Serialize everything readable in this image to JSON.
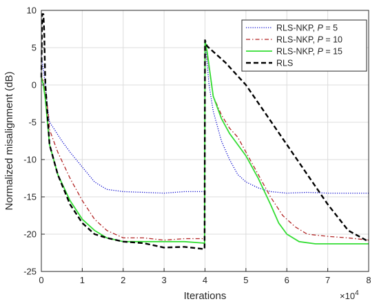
{
  "chart_data": {
    "type": "line",
    "title": "",
    "xlabel": "Iterations",
    "ylabel": "Normalized misalignment (dB)",
    "x_multiplier": "×10",
    "x_multiplier_exp": "4",
    "xlim": [
      0,
      8
    ],
    "ylim": [
      -25,
      10
    ],
    "xticks": [
      "0",
      "1",
      "2",
      "3",
      "4",
      "5",
      "6",
      "7",
      "8"
    ],
    "yticks": [
      "-25",
      "-20",
      "-15",
      "-10",
      "-5",
      "0",
      "5",
      "10"
    ],
    "grid": true,
    "legend_position": "top-right",
    "series": [
      {
        "legend_prefix": "RLS-NKP, ",
        "legend_var": "P",
        "legend_suffix": " = 5",
        "color": "#0000cc",
        "dash": "dotted",
        "x": [
          0,
          0.05,
          0.1,
          0.15,
          0.2,
          0.3,
          0.5,
          0.7,
          1.0,
          1.3,
          1.6,
          2.0,
          2.5,
          3.0,
          3.5,
          3.99,
          4.0,
          4.05,
          4.1,
          4.2,
          4.4,
          4.6,
          4.8,
          5.0,
          5.3,
          5.6,
          6.0,
          6.5,
          7.0,
          7.5,
          8.0
        ],
        "y": [
          4,
          2,
          0,
          -3,
          -5,
          -5.8,
          -7.5,
          -9,
          -11,
          -13,
          -14,
          -14.3,
          -14.4,
          -14.5,
          -14.3,
          -14.3,
          5.5,
          3,
          0,
          -3.5,
          -7.5,
          -10,
          -12,
          -13,
          -13.8,
          -14.3,
          -14.5,
          -14.4,
          -14.5,
          -14.5,
          -14.5
        ]
      },
      {
        "legend_prefix": "RLS-NKP, ",
        "legend_var": "P",
        "legend_suffix": " = 10",
        "color": "#b22222",
        "dash": "dashdot",
        "x": [
          0,
          0.05,
          0.1,
          0.15,
          0.2,
          0.4,
          0.7,
          1.0,
          1.3,
          1.6,
          2.0,
          2.5,
          3.0,
          3.5,
          3.99,
          4.0,
          4.05,
          4.2,
          4.4,
          4.6,
          4.8,
          5.0,
          5.3,
          5.6,
          5.9,
          6.2,
          6.5,
          7.0,
          7.5,
          8.0
        ],
        "y": [
          1,
          0.5,
          -1,
          -3,
          -6,
          -9,
          -12.5,
          -15.5,
          -18,
          -19.5,
          -20.5,
          -20.5,
          -20.8,
          -20.6,
          -20.6,
          6,
          4,
          -1.5,
          -4,
          -5.8,
          -7,
          -9,
          -12,
          -15,
          -17.5,
          -19,
          -20,
          -20.3,
          -20.5,
          -20.8
        ]
      },
      {
        "legend_prefix": "RLS-NKP, ",
        "legend_var": "P",
        "legend_suffix": " = 15",
        "color": "#33dd33",
        "dash": "solid",
        "x": [
          0,
          0.05,
          0.1,
          0.15,
          0.2,
          0.4,
          0.7,
          1.0,
          1.3,
          1.6,
          2.0,
          2.5,
          3.0,
          3.5,
          3.99,
          4.0,
          4.05,
          4.2,
          4.4,
          4.6,
          4.8,
          5.0,
          5.3,
          5.6,
          5.8,
          6.0,
          6.3,
          6.7,
          7.0,
          7.5,
          8.0
        ],
        "y": [
          1,
          0,
          -2,
          -5,
          -8,
          -12,
          -15.5,
          -18,
          -19.5,
          -20.5,
          -21,
          -21,
          -21,
          -21,
          -21.2,
          6,
          4.5,
          -1.5,
          -4.5,
          -6.5,
          -8,
          -9.5,
          -12.5,
          -16,
          -18.5,
          -20,
          -21,
          -21.3,
          -21.3,
          -21.3,
          -21.3
        ]
      },
      {
        "legend_prefix": "RLS",
        "legend_var": "",
        "legend_suffix": "",
        "color": "#000000",
        "dash": "dashed",
        "x": [
          0,
          0.02,
          0.05,
          0.07,
          0.09,
          0.1,
          0.15,
          0.2,
          0.4,
          0.7,
          1.0,
          1.3,
          1.6,
          2.0,
          2.5,
          3.0,
          3.5,
          3.99,
          4.0,
          4.05,
          4.5,
          5.0,
          5.5,
          6.0,
          6.5,
          7.0,
          7.5,
          8.0
        ],
        "y": [
          1,
          9.5,
          9.5,
          7,
          2,
          0,
          -4,
          -8,
          -12,
          -16,
          -18.5,
          -20,
          -20.5,
          -21,
          -21.2,
          -21.8,
          -21.7,
          -22,
          6,
          5.2,
          3,
          0,
          -4,
          -8,
          -12,
          -16,
          -19.5,
          -21
        ]
      }
    ]
  }
}
